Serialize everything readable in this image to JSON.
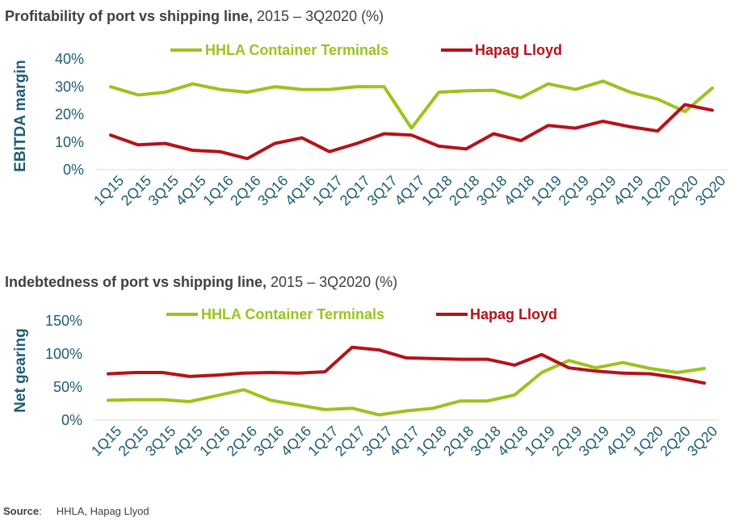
{
  "charts_titles": [
    {
      "bold": "Profitability of port vs shipping line,",
      "rest": " 2015 – 3Q2020 (%)"
    },
    {
      "bold": "Indebtedness of port vs shipping line,",
      "rest": " 2015 – 3Q2020 (%)"
    }
  ],
  "source": {
    "label": "Source",
    "colon": ":",
    "text": "HHLA, Hapag Llyod"
  },
  "colors": {
    "hhla": "#9BC31E",
    "hapag": "#B5121B",
    "axis_text": "#1F5C73",
    "title": "#404040"
  },
  "chart_data": [
    {
      "type": "line",
      "title": "Profitability of port vs shipping line, 2015 – 3Q2020 (%)",
      "ylabel": "EBITDA margin",
      "xlabel": "",
      "ylim": [
        0,
        40
      ],
      "yticks": [
        0,
        10,
        20,
        30,
        40
      ],
      "ytick_labels": [
        "0%",
        "10%",
        "20%",
        "30%",
        "40%"
      ],
      "grid": false,
      "legend": "top",
      "categories": [
        "1Q15",
        "2Q15",
        "3Q15",
        "4Q15",
        "1Q16",
        "2Q16",
        "3Q16",
        "4Q16",
        "1Q17",
        "2Q17",
        "3Q17",
        "4Q17",
        "1Q18",
        "2Q18",
        "3Q18",
        "4Q18",
        "1Q19",
        "2Q19",
        "3Q19",
        "4Q19",
        "1Q20",
        "2Q20",
        "3Q20"
      ],
      "series": [
        {
          "name": "HHLA Container Terminals",
          "color": "#9BC31E",
          "values": [
            30,
            27,
            28,
            31,
            29,
            28,
            30,
            29,
            29,
            30,
            30,
            15,
            28,
            28.5,
            28.7,
            26,
            31,
            29,
            32,
            28,
            25.5,
            21,
            29.5
          ]
        },
        {
          "name": "Hapag Lloyd",
          "color": "#B5121B",
          "values": [
            12.5,
            9,
            9.5,
            7,
            6.5,
            4,
            9.5,
            11.5,
            6.5,
            9.5,
            13,
            12.5,
            8.5,
            7.5,
            13,
            10.5,
            16,
            15,
            17.5,
            15.5,
            14,
            23.5,
            21.5
          ]
        }
      ]
    },
    {
      "type": "line",
      "title": "Indebtedness of port vs shipping line, 2015 – 3Q2020 (%)",
      "ylabel": "Net gearing",
      "xlabel": "",
      "ylim": [
        0,
        150
      ],
      "yticks": [
        0,
        50,
        100,
        150
      ],
      "ytick_labels": [
        "0%",
        "50%",
        "100%",
        "150%"
      ],
      "grid": false,
      "legend": "top",
      "categories": [
        "1Q15",
        "2Q15",
        "3Q15",
        "4Q15",
        "1Q16",
        "2Q16",
        "3Q16",
        "4Q16",
        "1Q17",
        "2Q17",
        "3Q17",
        "4Q17",
        "1Q18",
        "2Q18",
        "3Q18",
        "4Q18",
        "1Q19",
        "2Q19",
        "3Q19",
        "4Q19",
        "1Q20",
        "2Q20",
        "3Q20"
      ],
      "series": [
        {
          "name": "HHLA Container Terminals",
          "color": "#9BC31E",
          "values": [
            30,
            31,
            31,
            28,
            37,
            46,
            30,
            23,
            16,
            18,
            8,
            14,
            18,
            29,
            29,
            38,
            72,
            90,
            79,
            87,
            78,
            72,
            78
          ]
        },
        {
          "name": "Hapag Lloyd",
          "color": "#B5121B",
          "values": [
            70,
            72,
            72,
            66,
            68,
            71,
            72,
            71,
            73,
            110,
            106,
            94,
            93,
            92,
            92,
            83,
            99,
            79,
            74,
            71,
            70,
            64,
            56
          ]
        }
      ]
    }
  ]
}
